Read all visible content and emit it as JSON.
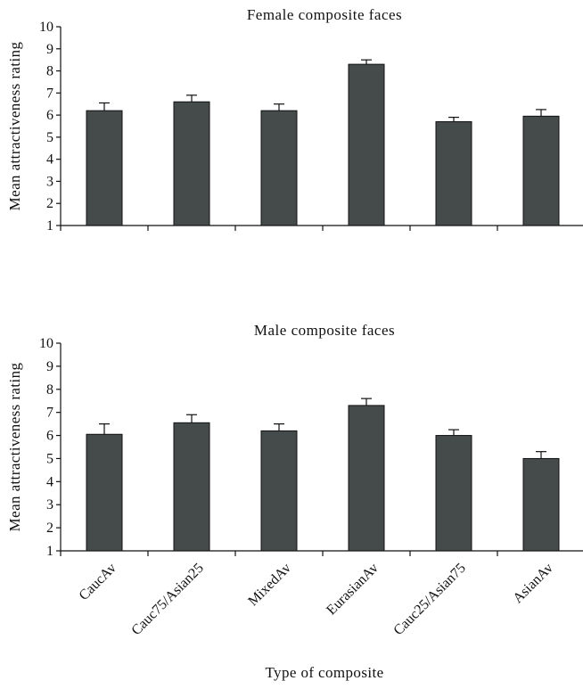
{
  "chart_data": [
    {
      "type": "bar",
      "title": "Female composite faces",
      "ylabel": "Mean attractiveness rating",
      "xlabel": "",
      "ylim": [
        1,
        10
      ],
      "yticks": [
        1,
        2,
        3,
        4,
        5,
        6,
        7,
        8,
        9,
        10
      ],
      "categories": [
        "CaucAv",
        "Cauc75/Asian25",
        "MixedAv",
        "EurasianAv",
        "Cauc25/Asian75",
        "AsianAv"
      ],
      "show_category_labels": false,
      "values": [
        6.2,
        6.6,
        6.2,
        8.3,
        5.7,
        5.95
      ],
      "error_plus": [
        0.35,
        0.3,
        0.3,
        0.2,
        0.2,
        0.3
      ],
      "grid": false
    },
    {
      "type": "bar",
      "title": "Male composite faces",
      "ylabel": "Mean attractiveness rating",
      "xlabel": "Type of composite",
      "ylim": [
        1,
        10
      ],
      "yticks": [
        1,
        2,
        3,
        4,
        5,
        6,
        7,
        8,
        9,
        10
      ],
      "categories": [
        "CaucAv",
        "Cauc75/Asian25",
        "MixedAv",
        "EurasianAv",
        "Cauc25/Asian75",
        "AsianAv"
      ],
      "show_category_labels": true,
      "values": [
        6.05,
        6.55,
        6.2,
        7.3,
        6.0,
        5.0
      ],
      "error_plus": [
        0.45,
        0.35,
        0.3,
        0.3,
        0.25,
        0.3
      ],
      "grid": false
    }
  ]
}
